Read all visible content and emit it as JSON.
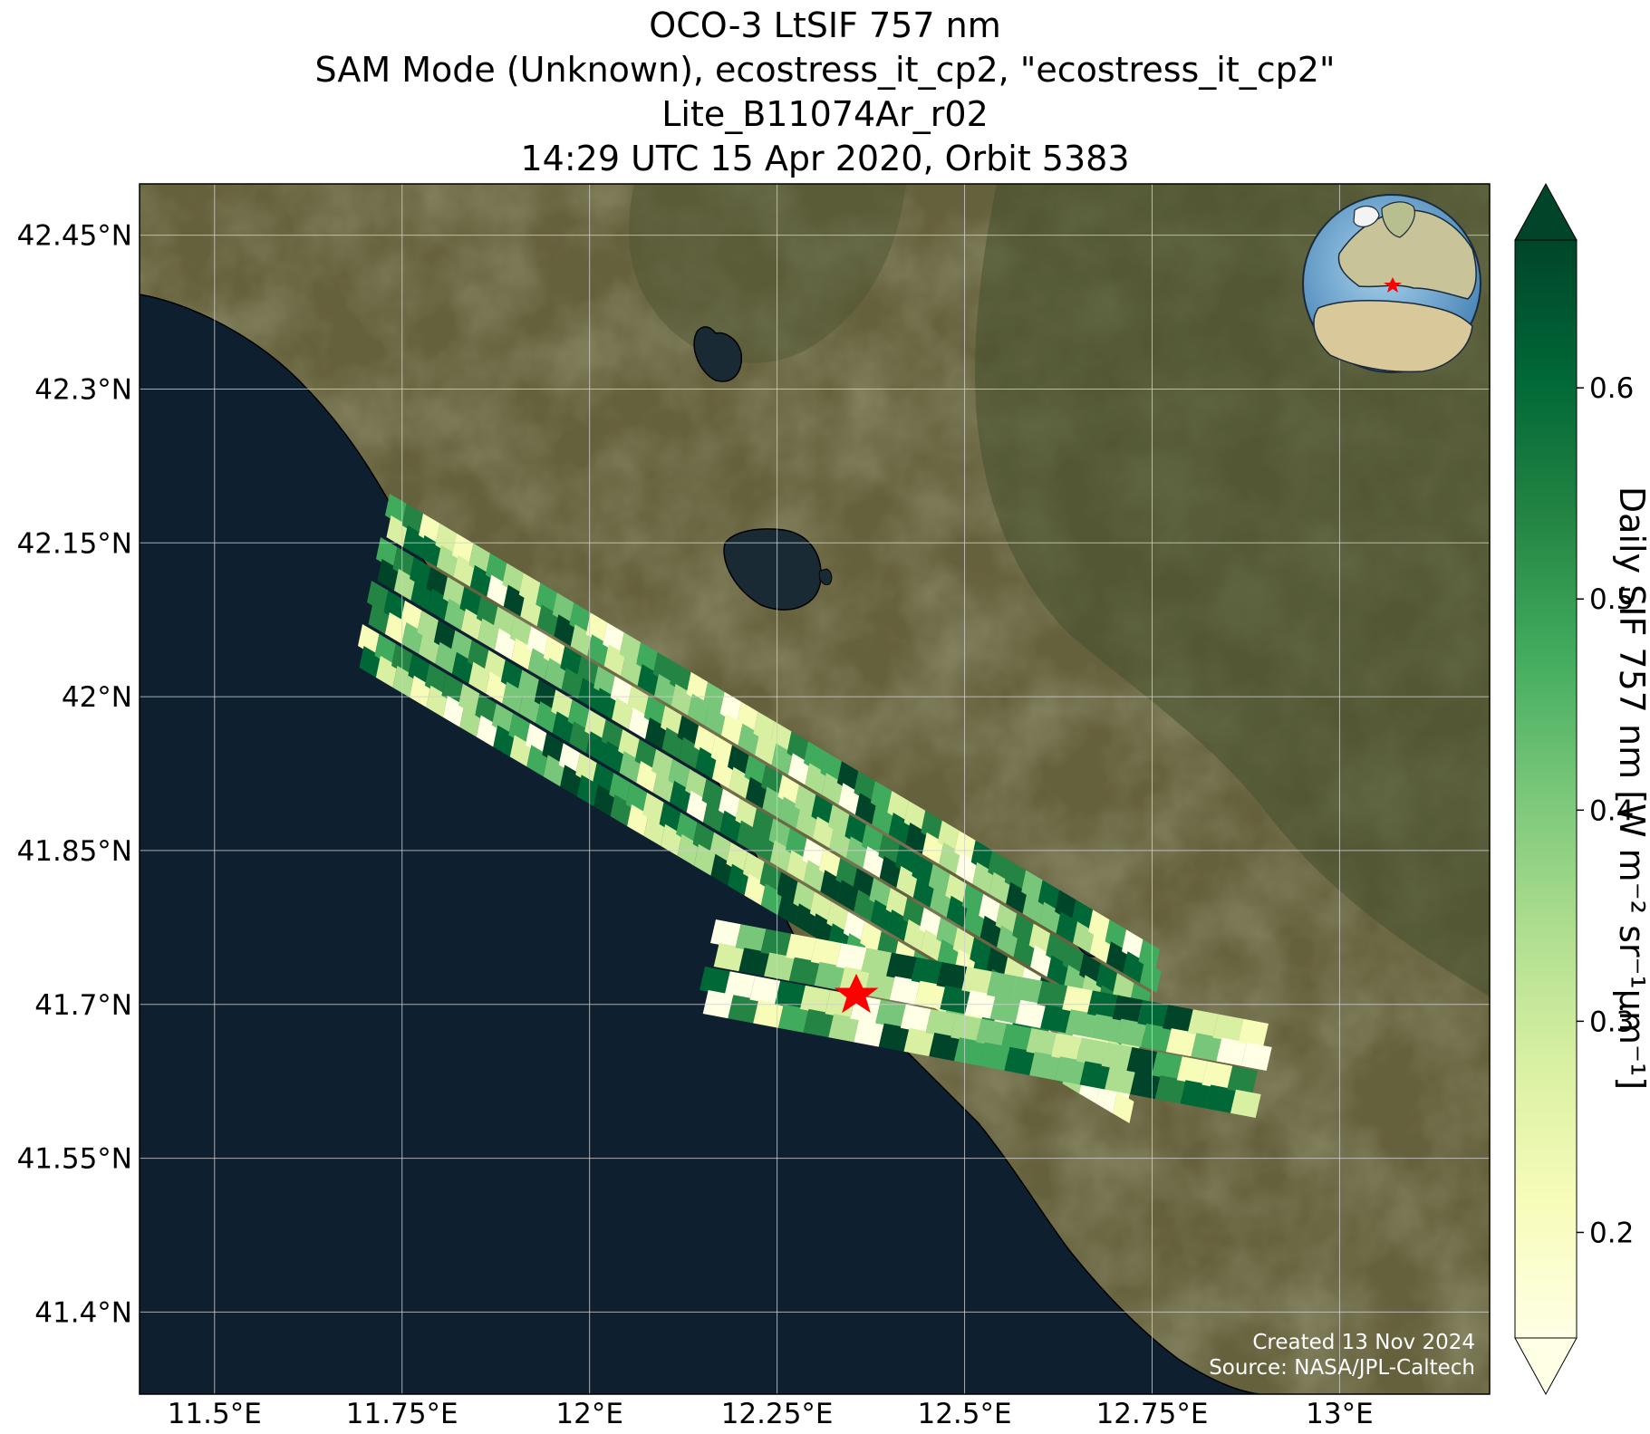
{
  "title": {
    "line1": "OCO-3 LtSIF 757 nm",
    "line2": "SAM Mode (Unknown), ecostress_it_cp2, \"ecostress_it_cp2\"",
    "line3": "Lite_B11074Ar_r02",
    "line4": "14:29 UTC 15 Apr 2020, Orbit 5383"
  },
  "map": {
    "x_ticks": [
      "11.5°E",
      "11.75°E",
      "12°E",
      "12.25°E",
      "12.5°E",
      "12.75°E",
      "13°E"
    ],
    "y_ticks": [
      "42.45°N",
      "42.3°N",
      "42.15°N",
      "42°N",
      "41.85°N",
      "41.7°N",
      "41.55°N",
      "41.4°N"
    ],
    "target_marker": {
      "lon": 12.35,
      "lat": 41.7,
      "color": "#ff0000"
    },
    "credit_line1": "Created 13 Nov 2024",
    "credit_line2": "Source: NASA/JPL-Caltech",
    "colors": {
      "sea": "#0e1f2f",
      "land": "#5f5a3a",
      "grid": "#d0d0d0"
    }
  },
  "colorbar": {
    "label": "Daily SIF 757 nm [W m⁻² sr⁻¹μm⁻¹]",
    "ticks": [
      "0.6",
      "0.5",
      "0.4",
      "0.3",
      "0.2"
    ],
    "min": 0.15,
    "max": 0.67,
    "colormap": "YlGn"
  },
  "chart_data": {
    "type": "heatmap",
    "x_range": [
      11.4,
      13.2
    ],
    "y_range": [
      41.32,
      42.5
    ],
    "grid": true,
    "legend_placement": "right colorbar",
    "value_range": [
      0.15,
      0.67
    ]
  }
}
